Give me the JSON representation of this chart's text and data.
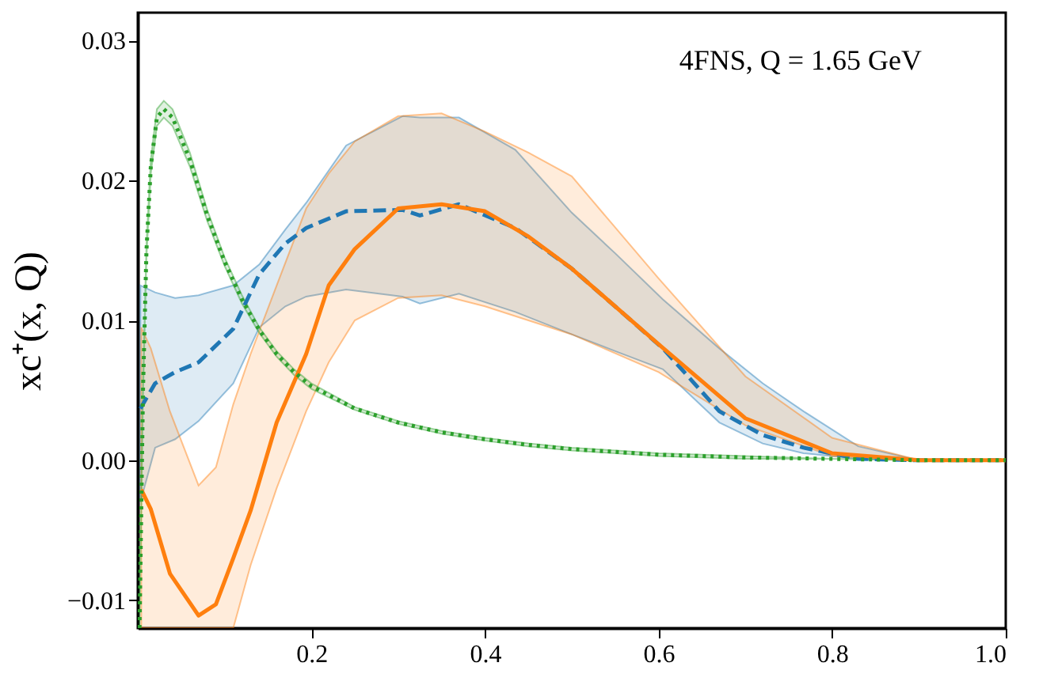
{
  "chart_data": {
    "type": "line",
    "ylabel": "xc⁺(x, Q)",
    "annotations": [
      "4FNS, Q = 1.65 GeV"
    ],
    "xlim": [
      0,
      1
    ],
    "ylim": [
      -0.012,
      0.032
    ],
    "xticks": [
      0.2,
      0.4,
      0.6,
      0.8,
      {
        "value": 1,
        "label": "1.0"
      }
    ],
    "yticks": [
      {
        "value": -0.01,
        "label": "−0.01"
      },
      {
        "value": 0,
        "label": "0.00"
      },
      0.01,
      0.02,
      0.03
    ],
    "grid": false,
    "series": [
      {
        "color": "#1f77b4",
        "line_style": "dashed",
        "x": [
          0.003,
          0.02,
          0.043,
          0.07,
          0.11,
          0.14,
          0.17,
          0.194,
          0.24,
          0.305,
          0.325,
          0.37,
          0.435,
          0.5,
          0.55,
          0.605,
          0.67,
          0.72,
          0.767,
          0.83,
          0.9,
          1.0
        ],
        "values": [
          0.0037,
          0.0055,
          0.0063,
          0.007,
          0.0094,
          0.0133,
          0.0155,
          0.0166,
          0.0178,
          0.0179,
          0.0175,
          0.0183,
          0.0166,
          0.0137,
          0.011,
          0.008,
          0.0035,
          0.0018,
          0.0009,
          0.0001,
          0,
          0
        ],
        "upper": [
          0.0125,
          0.012,
          0.0116,
          0.0118,
          0.0125,
          0.014,
          0.0165,
          0.0184,
          0.0225,
          0.0246,
          0.0245,
          0.0245,
          0.0222,
          0.0177,
          0.0148,
          0.0115,
          0.008,
          0.0055,
          0.0035,
          0.001,
          0,
          0
        ],
        "lower": [
          -0.003,
          0.0009,
          0.0015,
          0.0028,
          0.0055,
          0.0095,
          0.011,
          0.0117,
          0.0122,
          0.0117,
          0.0112,
          0.0119,
          0.0106,
          0.009,
          0.0078,
          0.0065,
          0.0027,
          0.0012,
          0.0005,
          0.0001,
          0,
          0
        ]
      },
      {
        "color": "#ff7f0e",
        "line_style": "solid",
        "x": [
          0.004,
          0.015,
          0.037,
          0.07,
          0.09,
          0.11,
          0.13,
          0.16,
          0.194,
          0.22,
          0.25,
          0.3,
          0.35,
          0.4,
          0.45,
          0.5,
          0.6,
          0.7,
          0.8,
          0.9,
          1.0
        ],
        "values": [
          -0.0021,
          -0.0035,
          -0.0081,
          -0.0111,
          -0.0103,
          -0.007,
          -0.0036,
          0.0027,
          0.0076,
          0.0125,
          0.0151,
          0.018,
          0.0183,
          0.0178,
          0.016,
          0.0137,
          0.0083,
          0.003,
          0.0005,
          0,
          0
        ],
        "upper": [
          0.0095,
          0.008,
          0.0035,
          -0.0018,
          -0.0005,
          0.004,
          0.0076,
          0.0125,
          0.018,
          0.0205,
          0.0228,
          0.0246,
          0.0248,
          0.0235,
          0.022,
          0.0203,
          0.013,
          0.006,
          0.0016,
          0,
          0
        ],
        "lower": [
          -0.012,
          -0.012,
          -0.012,
          -0.012,
          -0.012,
          -0.012,
          -0.0075,
          -0.002,
          0.0035,
          0.007,
          0.01,
          0.0116,
          0.0118,
          0.011,
          0.01,
          0.009,
          0.0063,
          0.0025,
          0.0003,
          0,
          0
        ]
      },
      {
        "color": "#2ca02c",
        "line_style": "dotted",
        "x": [
          0.002,
          0.006,
          0.01,
          0.015,
          0.022,
          0.03,
          0.04,
          0.06,
          0.08,
          0.1,
          0.12,
          0.14,
          0.16,
          0.18,
          0.2,
          0.25,
          0.3,
          0.35,
          0.4,
          0.45,
          0.5,
          0.6,
          0.7,
          0.8,
          0.9,
          1.0
        ],
        "values": [
          -0.012,
          0.005,
          0.015,
          0.021,
          0.0245,
          0.0251,
          0.0245,
          0.0215,
          0.0175,
          0.0142,
          0.0115,
          0.0093,
          0.0076,
          0.0063,
          0.0053,
          0.0037,
          0.0027,
          0.002,
          0.0015,
          0.0011,
          0.0008,
          0.0004,
          0.0002,
          0.0001,
          0,
          0
        ],
        "upper": [
          -0.012,
          0.0055,
          0.0155,
          0.0215,
          0.0251,
          0.0257,
          0.0251,
          0.022,
          0.0179,
          0.0145,
          0.0118,
          0.0095,
          0.0078,
          0.0065,
          0.0055,
          0.0038,
          0.0028,
          0.0021,
          0.0016,
          0.0012,
          0.0009,
          0.0005,
          0.0003,
          0.0001,
          0,
          0
        ],
        "lower": [
          -0.012,
          0.0045,
          0.0145,
          0.0205,
          0.0239,
          0.0245,
          0.0239,
          0.021,
          0.0171,
          0.0139,
          0.0112,
          0.0091,
          0.0074,
          0.0061,
          0.0051,
          0.0036,
          0.0026,
          0.0019,
          0.0014,
          0.001,
          0.0007,
          0.0003,
          0.0001,
          0.0001,
          0,
          0
        ]
      }
    ]
  }
}
